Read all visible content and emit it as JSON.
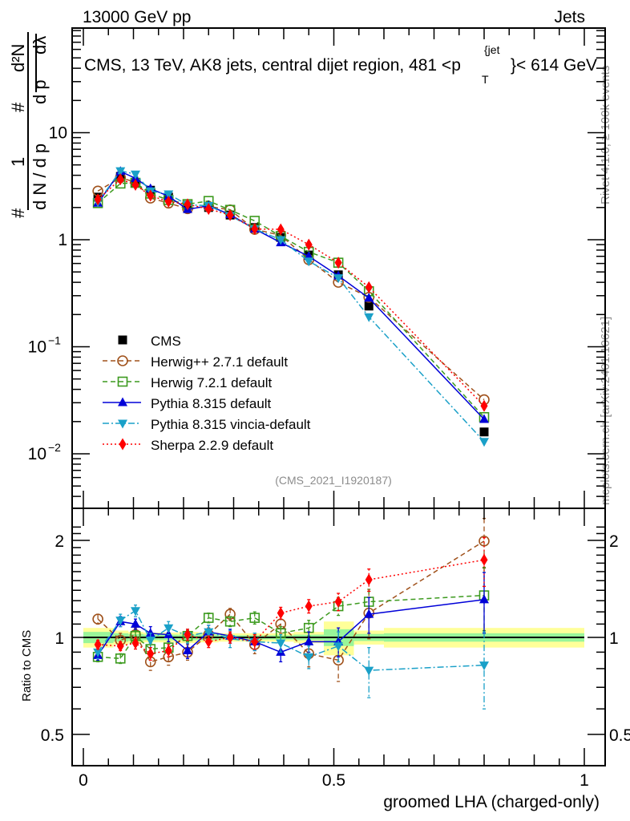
{
  "header": {
    "left": "13000 GeV pp",
    "right": "Jets"
  },
  "side_labels": {
    "rivet": "Rivet 4.1.0, ≥ 100k events",
    "mcplots": "mcplots.cern.ch [arXiv:2401.10621]"
  },
  "chart_data": [
    {
      "type": "line",
      "title": "CMS, 13 TeV, AK8 jets, central dijet region, 481 <p_T^{jet}< 614 GeV",
      "title_parts": {
        "main": "CMS, 13 TeV, AK8 jets, central dijet region, 481 <p",
        "sup": "{jet",
        "sub": "T",
        "tail": "}< 614 GeV"
      },
      "ylabel": "1/dN/dp_T  d²N/dp_T dλ",
      "ylabel_parts": {
        "a": "d N / d p",
        "b": "d p",
        "c": "d²N",
        "d": "dλ",
        "one": "1",
        "hash": "#"
      },
      "yscale": "log",
      "ylim": [
        0.003,
        40
      ],
      "xlim": [
        -0.02,
        1.02
      ],
      "yticks": [
        {
          "value": 10,
          "label": "10"
        },
        {
          "value": 1,
          "label": "1"
        },
        {
          "value": 0.1,
          "label": "10",
          "exp": "−1"
        },
        {
          "value": 0.01,
          "label": "10",
          "exp": "−2"
        }
      ],
      "watermark": "(CMS_2021_I1920187)",
      "legend_position": "center-left",
      "x": [
        0.029,
        0.074,
        0.104,
        0.134,
        0.17,
        0.208,
        0.25,
        0.293,
        0.342,
        0.394,
        0.45,
        0.509,
        0.57,
        0.8
      ],
      "series": [
        {
          "name": "CMS",
          "style": "data",
          "color": "#000000",
          "marker": "square",
          "values": [
            2.5,
            3.9,
            3.4,
            2.9,
            2.5,
            2.1,
            2.0,
            1.7,
            1.3,
            1.05,
            0.72,
            0.47,
            0.24,
            0.016
          ]
        },
        {
          "name": "Herwig++ 2.7.1 default",
          "color": "#a0521c",
          "marker": "open-circle",
          "dash": "6,4",
          "values": [
            2.85,
            3.8,
            3.45,
            2.45,
            2.2,
            1.95,
            2.05,
            1.9,
            1.25,
            1.1,
            0.65,
            0.4,
            0.29,
            0.032
          ]
        },
        {
          "name": "Herwig 7.2.1 default",
          "color": "#3c9a1e",
          "marker": "open-square",
          "dash": "6,4",
          "values": [
            2.2,
            3.35,
            3.4,
            2.7,
            2.35,
            2.15,
            2.3,
            1.9,
            1.5,
            1.08,
            0.77,
            0.61,
            0.33,
            0.022
          ]
        },
        {
          "name": "Pythia 8.315 default",
          "color": "#0000d8",
          "marker": "triangle-up",
          "dash": "",
          "values": [
            2.2,
            4.35,
            3.75,
            3.0,
            2.55,
            1.92,
            2.08,
            1.72,
            1.26,
            0.94,
            0.7,
            0.46,
            0.285,
            0.021
          ]
        },
        {
          "name": "Pythia 8.315 vincia-default",
          "color": "#1aa0c8",
          "marker": "triangle-down",
          "dash": "8,3,2,3",
          "values": [
            2.25,
            4.4,
            4.1,
            2.85,
            2.67,
            2.12,
            2.08,
            1.68,
            1.26,
            1.0,
            0.63,
            0.44,
            0.19,
            0.013
          ]
        },
        {
          "name": "Sherpa 2.2.9 default",
          "color": "#ff0000",
          "marker": "diamond",
          "dash": "2,3",
          "values": [
            2.38,
            3.67,
            3.26,
            2.58,
            2.27,
            2.14,
            1.94,
            1.7,
            1.26,
            1.25,
            0.9,
            0.61,
            0.36,
            0.028
          ]
        }
      ]
    },
    {
      "type": "line",
      "ylabel": "Ratio to CMS",
      "xlabel": "groomed LHA (charged-only)",
      "yscale": "log",
      "ylim": [
        0.43,
        2.35
      ],
      "xlim": [
        -0.02,
        1.02
      ],
      "yticks": [
        {
          "value": 2,
          "label": "2"
        },
        {
          "value": 1,
          "label": "1"
        },
        {
          "value": 0.5,
          "label": "0.5"
        }
      ],
      "xticks": [
        {
          "value": 0,
          "label": "0"
        },
        {
          "value": 0.5,
          "label": "0.5"
        },
        {
          "value": 1,
          "label": "1"
        }
      ],
      "x": [
        0.029,
        0.074,
        0.104,
        0.134,
        0.17,
        0.208,
        0.25,
        0.293,
        0.342,
        0.394,
        0.45,
        0.509,
        0.57,
        0.8
      ],
      "uncertainty_band": {
        "edges": [
          0.0,
          0.06,
          0.09,
          0.12,
          0.15,
          0.19,
          0.23,
          0.27,
          0.32,
          0.37,
          0.42,
          0.48,
          0.54,
          0.6,
          1.0
        ],
        "inner": [
          0.04,
          0.03,
          0.025,
          0.02,
          0.02,
          0.02,
          0.02,
          0.015,
          0.015,
          0.015,
          0.02,
          0.06,
          0.025,
          0.03
        ],
        "outer": [
          0.07,
          0.05,
          0.04,
          0.035,
          0.035,
          0.04,
          0.035,
          0.03,
          0.03,
          0.03,
          0.04,
          0.12,
          0.05,
          0.07
        ],
        "inner_color": "#99f599",
        "outer_color": "#ffff99"
      },
      "series": [
        {
          "name": "Herwig++ 2.7.1 default",
          "color": "#a0521c",
          "marker": "open-circle",
          "dash": "6,4",
          "values": [
            1.14,
            0.98,
            1.02,
            0.84,
            0.87,
            0.9,
            1.02,
            1.18,
            0.95,
            1.1,
            0.89,
            0.85,
            1.19,
            1.99
          ],
          "errors": [
            0.04,
            0.05,
            0.05,
            0.05,
            0.05,
            0.05,
            0.05,
            0.05,
            0.06,
            0.07,
            0.08,
            0.12,
            0.2,
            0.35
          ]
        },
        {
          "name": "Herwig 7.2.1 default",
          "color": "#3c9a1e",
          "marker": "open-square",
          "dash": "6,4",
          "values": [
            0.87,
            0.86,
            1.01,
            0.92,
            0.93,
            1.01,
            1.15,
            1.12,
            1.15,
            1.03,
            1.07,
            1.25,
            1.29,
            1.35
          ],
          "errors": [
            0.03,
            0.03,
            0.04,
            0.04,
            0.04,
            0.04,
            0.04,
            0.04,
            0.05,
            0.05,
            0.06,
            0.08,
            0.12,
            0.3
          ]
        },
        {
          "name": "Pythia 8.315 default",
          "color": "#0000d8",
          "marker": "triangle-up",
          "dash": "",
          "values": [
            0.88,
            1.12,
            1.1,
            1.03,
            1.02,
            0.91,
            1.04,
            1.01,
            0.97,
            0.9,
            0.97,
            0.97,
            1.18,
            1.31
          ],
          "errors": [
            0.03,
            0.04,
            0.04,
            0.05,
            0.05,
            0.05,
            0.05,
            0.05,
            0.06,
            0.06,
            0.07,
            0.1,
            0.15,
            0.28
          ]
        },
        {
          "name": "Pythia 8.315 vincia-default",
          "color": "#1aa0c8",
          "marker": "triangle-down",
          "dash": "8,3,2,3",
          "values": [
            0.9,
            1.13,
            1.21,
            0.98,
            1.07,
            1.01,
            1.04,
            0.99,
            0.97,
            0.96,
            0.87,
            0.94,
            0.79,
            0.82
          ],
          "errors": [
            0.04,
            0.05,
            0.05,
            0.05,
            0.05,
            0.05,
            0.05,
            0.06,
            0.06,
            0.06,
            0.07,
            0.1,
            0.14,
            0.22
          ]
        },
        {
          "name": "Sherpa 2.2.9 default",
          "color": "#ff0000",
          "marker": "diamond",
          "dash": "2,3",
          "values": [
            0.95,
            0.94,
            0.96,
            0.89,
            0.91,
            1.02,
            0.97,
            1.0,
            0.97,
            1.19,
            1.25,
            1.29,
            1.51,
            1.74
          ],
          "errors": [
            0.03,
            0.03,
            0.04,
            0.04,
            0.04,
            0.04,
            0.04,
            0.04,
            0.05,
            0.05,
            0.06,
            0.08,
            0.12,
            0.3
          ]
        }
      ]
    }
  ]
}
